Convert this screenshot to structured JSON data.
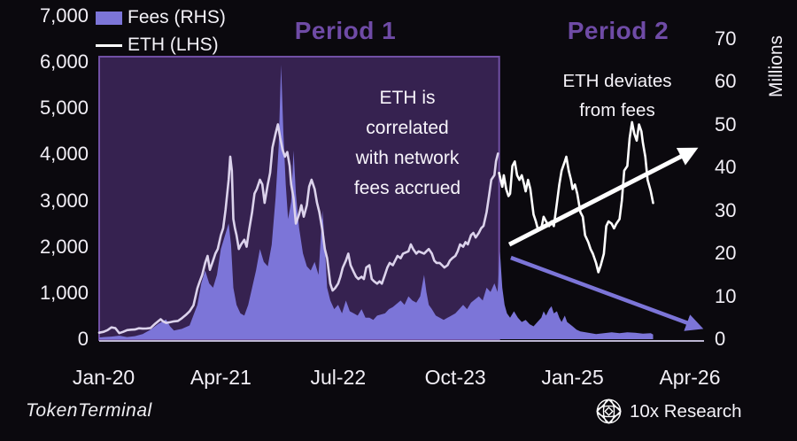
{
  "legend": {
    "fees_label": "Fees (RHS)",
    "eth_label": "ETH (LHS)"
  },
  "annotations": {
    "period1_title": "Period 1",
    "period2_title": "Period 2",
    "correlated_lines": [
      "ETH is",
      "correlated",
      "with network",
      "fees accrued"
    ],
    "deviates_lines": [
      "ETH deviates",
      "from fees"
    ]
  },
  "footer": {
    "left_brand": "TokenTerminal",
    "right_brand": "10x Research",
    "right_brand_icon": "wireframe-globe-icon"
  },
  "colors": {
    "background": "#0b090e",
    "fees_area": "#7c75d8",
    "eth_line_period1": "#dcd3ec",
    "eth_line_period2": "#ffffff",
    "period_title": "#6f4ba6",
    "period1_box_fill": "#362250",
    "period1_box_border": "#7150a5",
    "axis_line": "#bcb6d2",
    "tick_text": "#f2eff6"
  },
  "chart_data": {
    "type": "area+line",
    "x_unit": "months since Jan-2020",
    "x_ticks": [
      {
        "label": "Jan-20",
        "m": 0
      },
      {
        "label": "Apr-21",
        "m": 15
      },
      {
        "label": "Jul-22",
        "m": 30
      },
      {
        "label": "Oct-23",
        "m": 45
      },
      {
        "label": "Jan-25",
        "m": 60
      },
      {
        "label": "Apr-26",
        "m": 75
      }
    ],
    "left_axis": {
      "series": "ETH price (LHS)",
      "range": [
        0,
        7000
      ],
      "ticks": [
        {
          "label": "7,000",
          "v": 7000
        },
        {
          "label": "6,000",
          "v": 6000
        },
        {
          "label": "5,000",
          "v": 5000
        },
        {
          "label": "4,000",
          "v": 4000
        },
        {
          "label": "3,000",
          "v": 3000
        },
        {
          "label": "2,000",
          "v": 2000
        },
        {
          "label": "1,000",
          "v": 1000
        },
        {
          "label": "0",
          "v": 0
        }
      ]
    },
    "right_axis": {
      "series": "Fees (RHS)",
      "title": "Millions",
      "range": [
        0,
        70
      ],
      "ticks": [
        {
          "label": "70",
          "v": 70
        },
        {
          "label": "60",
          "v": 60
        },
        {
          "label": "50",
          "v": 50
        },
        {
          "label": "40",
          "v": 40
        },
        {
          "label": "30",
          "v": 30
        },
        {
          "label": "20",
          "v": 20
        },
        {
          "label": "10",
          "v": 10
        },
        {
          "label": "0",
          "v": 0
        }
      ]
    },
    "period1_region": {
      "m_start": -0.57,
      "m_end": 50.6
    },
    "series": [
      {
        "name": "Fees (RHS)",
        "type": "area",
        "axis": "right",
        "color": "#7c75d8"
      },
      {
        "name": "ETH (LHS)",
        "type": "line",
        "axis": "left",
        "color_period1": "#dcd3ec",
        "color_period2": "#ffffff"
      }
    ],
    "fees_series": [
      [
        -0.57,
        0.4
      ],
      [
        0,
        0.5
      ],
      [
        1,
        0.6
      ],
      [
        2,
        0.8
      ],
      [
        3,
        0.5
      ],
      [
        4,
        0.7
      ],
      [
        5,
        1.2
      ],
      [
        6,
        2.2
      ],
      [
        7,
        3.6
      ],
      [
        8,
        4.6
      ],
      [
        8.5,
        3.0
      ],
      [
        9,
        2.0
      ],
      [
        10,
        2.4
      ],
      [
        11,
        3.2
      ],
      [
        12,
        8
      ],
      [
        12.5,
        13
      ],
      [
        13,
        16
      ],
      [
        13.5,
        13
      ],
      [
        14,
        12
      ],
      [
        14.5,
        15
      ],
      [
        15,
        21
      ],
      [
        15.5,
        24
      ],
      [
        16,
        27
      ],
      [
        16.3,
        22
      ],
      [
        16.6,
        12
      ],
      [
        17,
        8
      ],
      [
        17.5,
        6
      ],
      [
        18,
        5.5
      ],
      [
        18.5,
        8
      ],
      [
        19,
        12
      ],
      [
        19.5,
        16
      ],
      [
        20,
        21
      ],
      [
        20.5,
        18
      ],
      [
        21,
        17
      ],
      [
        21.5,
        22
      ],
      [
        22,
        33
      ],
      [
        22.4,
        45
      ],
      [
        22.7,
        64
      ],
      [
        23,
        48
      ],
      [
        23.3,
        36
      ],
      [
        23.6,
        28
      ],
      [
        24,
        32
      ],
      [
        24.3,
        44
      ],
      [
        24.6,
        34
      ],
      [
        25,
        26
      ],
      [
        25.5,
        20
      ],
      [
        26,
        17
      ],
      [
        26.5,
        16
      ],
      [
        27,
        18
      ],
      [
        27.5,
        15
      ],
      [
        28,
        30
      ],
      [
        28.3,
        22
      ],
      [
        28.6,
        12
      ],
      [
        29,
        9
      ],
      [
        29.5,
        7
      ],
      [
        30,
        8
      ],
      [
        30.5,
        6
      ],
      [
        31,
        9
      ],
      [
        31.5,
        6.5
      ],
      [
        32,
        6
      ],
      [
        32.5,
        5.5
      ],
      [
        33,
        7
      ],
      [
        33.5,
        5
      ],
      [
        34,
        5
      ],
      [
        34.5,
        4.5
      ],
      [
        35,
        5.5
      ],
      [
        36,
        6
      ],
      [
        36.5,
        7
      ],
      [
        37,
        7.5
      ],
      [
        38,
        9
      ],
      [
        38.5,
        8
      ],
      [
        39,
        10
      ],
      [
        39.5,
        9
      ],
      [
        40,
        8.5
      ],
      [
        40.5,
        10
      ],
      [
        41,
        15
      ],
      [
        41.3,
        11
      ],
      [
        41.6,
        8
      ],
      [
        42,
        7
      ],
      [
        42.5,
        5.5
      ],
      [
        43,
        5
      ],
      [
        43.5,
        4.5
      ],
      [
        44,
        5
      ],
      [
        44.5,
        5.5
      ],
      [
        45,
        6
      ],
      [
        45.5,
        7
      ],
      [
        46,
        8
      ],
      [
        46.5,
        7
      ],
      [
        47,
        8.5
      ],
      [
        48,
        10
      ],
      [
        48.5,
        9
      ],
      [
        49,
        12
      ],
      [
        49.5,
        11
      ],
      [
        50,
        13
      ],
      [
        50.4,
        11
      ],
      [
        50.7,
        20.5
      ],
      [
        51,
        12
      ],
      [
        51.3,
        8
      ],
      [
        51.6,
        6
      ],
      [
        52,
        5
      ],
      [
        52.5,
        6.5
      ],
      [
        53,
        5
      ],
      [
        53.5,
        4
      ],
      [
        54,
        4.5
      ],
      [
        54.5,
        3.5
      ],
      [
        55,
        3
      ],
      [
        55.5,
        4
      ],
      [
        56,
        5
      ],
      [
        56.3,
        6.5
      ],
      [
        56.6,
        5.5
      ],
      [
        57,
        7
      ],
      [
        57.3,
        7.7
      ],
      [
        57.6,
        6
      ],
      [
        58,
        6.5
      ],
      [
        58.3,
        5
      ],
      [
        58.6,
        4
      ],
      [
        59,
        5.5
      ],
      [
        59.3,
        4
      ],
      [
        60,
        3
      ],
      [
        60.5,
        2.2
      ],
      [
        61,
        1.8
      ],
      [
        62,
        1.5
      ],
      [
        63,
        1.2
      ],
      [
        64,
        1.4
      ],
      [
        65,
        1.6
      ],
      [
        66,
        1.4
      ],
      [
        67,
        1.6
      ],
      [
        68,
        1.5
      ],
      [
        69,
        1.3
      ],
      [
        70,
        1.4
      ],
      [
        70.3,
        1.1
      ]
    ],
    "eth_series_period1": [
      [
        -0.57,
        140
      ],
      [
        0,
        160
      ],
      [
        0.5,
        195
      ],
      [
        1,
        255
      ],
      [
        1.5,
        240
      ],
      [
        2,
        130
      ],
      [
        2.5,
        160
      ],
      [
        3,
        195
      ],
      [
        3.5,
        205
      ],
      [
        4,
        210
      ],
      [
        4.5,
        235
      ],
      [
        5,
        228
      ],
      [
        5.5,
        232
      ],
      [
        6,
        242
      ],
      [
        6.5,
        320
      ],
      [
        7,
        392
      ],
      [
        7.3,
        432
      ],
      [
        7.6,
        386
      ],
      [
        8,
        352
      ],
      [
        8.5,
        366
      ],
      [
        9,
        386
      ],
      [
        9.5,
        396
      ],
      [
        10,
        452
      ],
      [
        10.5,
        522
      ],
      [
        11,
        602
      ],
      [
        11.5,
        732
      ],
      [
        12,
        1100
      ],
      [
        12.3,
        1252
      ],
      [
        12.6,
        1382
      ],
      [
        13,
        1652
      ],
      [
        13.3,
        1802
      ],
      [
        13.6,
        1502
      ],
      [
        14,
        1702
      ],
      [
        14.3,
        1852
      ],
      [
        14.6,
        1952
      ],
      [
        15,
        2252
      ],
      [
        15.3,
        2402
      ],
      [
        15.6,
        2802
      ],
      [
        16,
        3452
      ],
      [
        16.2,
        3952
      ],
      [
        16.4,
        3652
      ],
      [
        16.6,
        2602
      ],
      [
        16.8,
        2402
      ],
      [
        17,
        2252
      ],
      [
        17.3,
        1952
      ],
      [
        17.6,
        2052
      ],
      [
        18,
        2152
      ],
      [
        18.3,
        2002
      ],
      [
        18.6,
        2352
      ],
      [
        19,
        2752
      ],
      [
        19.3,
        3152
      ],
      [
        19.6,
        3252
      ],
      [
        20,
        3452
      ],
      [
        20.3,
        3352
      ],
      [
        20.6,
        2952
      ],
      [
        21,
        3352
      ],
      [
        21.3,
        3602
      ],
      [
        21.6,
        4152
      ],
      [
        22,
        4452
      ],
      [
        22.3,
        4652
      ],
      [
        22.6,
        4352
      ],
      [
        22.9,
        4102
      ],
      [
        23.2,
        3952
      ],
      [
        23.5,
        4052
      ],
      [
        23.8,
        3752
      ],
      [
        24,
        3352
      ],
      [
        24.3,
        3052
      ],
      [
        24.6,
        2502
      ],
      [
        25,
        2702
      ],
      [
        25.3,
        2902
      ],
      [
        25.6,
        2652
      ],
      [
        26,
        2902
      ],
      [
        26.3,
        3302
      ],
      [
        26.6,
        3452
      ],
      [
        27,
        3252
      ],
      [
        27.3,
        2952
      ],
      [
        27.6,
        2752
      ],
      [
        28,
        2352
      ],
      [
        28.3,
        1952
      ],
      [
        28.6,
        1752
      ],
      [
        29,
        1202
      ],
      [
        29.3,
        1052
      ],
      [
        29.6,
        1102
      ],
      [
        30,
        1202
      ],
      [
        30.3,
        1352
      ],
      [
        30.6,
        1552
      ],
      [
        31,
        1702
      ],
      [
        31.3,
        1852
      ],
      [
        31.6,
        1602
      ],
      [
        32,
        1452
      ],
      [
        32.3,
        1352
      ],
      [
        32.6,
        1302
      ],
      [
        33,
        1352
      ],
      [
        33.3,
        1302
      ],
      [
        33.6,
        1552
      ],
      [
        34,
        1602
      ],
      [
        34.3,
        1302
      ],
      [
        34.6,
        1252
      ],
      [
        35,
        1202
      ],
      [
        35.3,
        1252
      ],
      [
        35.6,
        1202
      ],
      [
        36,
        1402
      ],
      [
        36.3,
        1552
      ],
      [
        36.6,
        1652
      ],
      [
        37,
        1602
      ],
      [
        37.3,
        1702
      ],
      [
        37.6,
        1802
      ],
      [
        38,
        1752
      ],
      [
        38.3,
        1852
      ],
      [
        39,
        1902
      ],
      [
        39.3,
        2052
      ],
      [
        39.6,
        1952
      ],
      [
        40,
        1852
      ],
      [
        40.3,
        1902
      ],
      [
        41,
        1852
      ],
      [
        41.3,
        1902
      ],
      [
        41.6,
        1952
      ],
      [
        42,
        1852
      ],
      [
        42.3,
        1702
      ],
      [
        42.6,
        1652
      ],
      [
        43,
        1652
      ],
      [
        43.3,
        1602
      ],
      [
        43.6,
        1552
      ],
      [
        44,
        1602
      ],
      [
        44.3,
        1702
      ],
      [
        44.6,
        1752
      ],
      [
        45,
        1802
      ],
      [
        45.3,
        1902
      ],
      [
        45.6,
        2052
      ],
      [
        46,
        2002
      ],
      [
        46.3,
        2102
      ],
      [
        46.6,
        2052
      ],
      [
        47,
        2252
      ],
      [
        47.3,
        2302
      ],
      [
        47.6,
        2202
      ],
      [
        48,
        2302
      ],
      [
        48.3,
        2402
      ],
      [
        48.6,
        2452
      ],
      [
        49,
        2752
      ],
      [
        49.3,
        3102
      ],
      [
        49.6,
        3452
      ],
      [
        50,
        3552
      ],
      [
        50.2,
        3852
      ],
      [
        50.45,
        4020
      ]
    ],
    "eth_series_period2": [
      [
        50.6,
        3600
      ],
      [
        50.8,
        3450
      ],
      [
        51,
        3300
      ],
      [
        51.2,
        3550
      ],
      [
        51.5,
        3250
      ],
      [
        51.8,
        3100
      ],
      [
        52,
        3150
      ],
      [
        52.3,
        3750
      ],
      [
        52.6,
        3850
      ],
      [
        52.9,
        3550
      ],
      [
        53.2,
        3450
      ],
      [
        53.5,
        3550
      ],
      [
        53.8,
        3350
      ],
      [
        54,
        3200
      ],
      [
        54.3,
        3450
      ],
      [
        54.6,
        3250
      ],
      [
        55,
        2700
      ],
      [
        55.3,
        2550
      ],
      [
        55.6,
        2350
      ],
      [
        56,
        2400
      ],
      [
        56.3,
        2650
      ],
      [
        56.6,
        2550
      ],
      [
        57,
        2450
      ],
      [
        57.3,
        2550
      ],
      [
        57.6,
        2450
      ],
      [
        58,
        2950
      ],
      [
        58.3,
        3350
      ],
      [
        58.6,
        3650
      ],
      [
        59,
        3850
      ],
      [
        59.2,
        3950
      ],
      [
        59.5,
        3650
      ],
      [
        59.8,
        3450
      ],
      [
        60,
        3250
      ],
      [
        60.3,
        3350
      ],
      [
        60.6,
        3150
      ],
      [
        61,
        2750
      ],
      [
        61.3,
        2650
      ],
      [
        61.6,
        2250
      ],
      [
        62,
        2100
      ],
      [
        62.3,
        1950
      ],
      [
        62.6,
        1850
      ],
      [
        63,
        1650
      ],
      [
        63.3,
        1450
      ],
      [
        63.6,
        1600
      ],
      [
        64,
        1850
      ],
      [
        64.3,
        2450
      ],
      [
        64.6,
        2550
      ],
      [
        65,
        2500
      ],
      [
        65.3,
        2400
      ],
      [
        65.6,
        2500
      ],
      [
        66,
        2600
      ],
      [
        66.3,
        3000
      ],
      [
        66.6,
        3650
      ],
      [
        67,
        3750
      ],
      [
        67.3,
        4350
      ],
      [
        67.6,
        4700
      ],
      [
        67.9,
        4450
      ],
      [
        68.2,
        4300
      ],
      [
        68.5,
        4650
      ],
      [
        68.8,
        4500
      ],
      [
        69,
        4250
      ],
      [
        69.3,
        3950
      ],
      [
        69.6,
        3450
      ],
      [
        70,
        3200
      ],
      [
        70.3,
        2950
      ]
    ],
    "arrows": [
      {
        "name": "eth-trend-up-arrow",
        "axis": "left",
        "from": [
          51.9,
          2050
        ],
        "to": [
          75.3,
          4080
        ],
        "color": "#ffffff",
        "width": 5
      },
      {
        "name": "fees-trend-down-arrow",
        "axis": "right",
        "from": [
          52.1,
          19
        ],
        "to": [
          76.0,
          2.9
        ],
        "color": "#7c75d8",
        "width": 4.5
      }
    ]
  }
}
